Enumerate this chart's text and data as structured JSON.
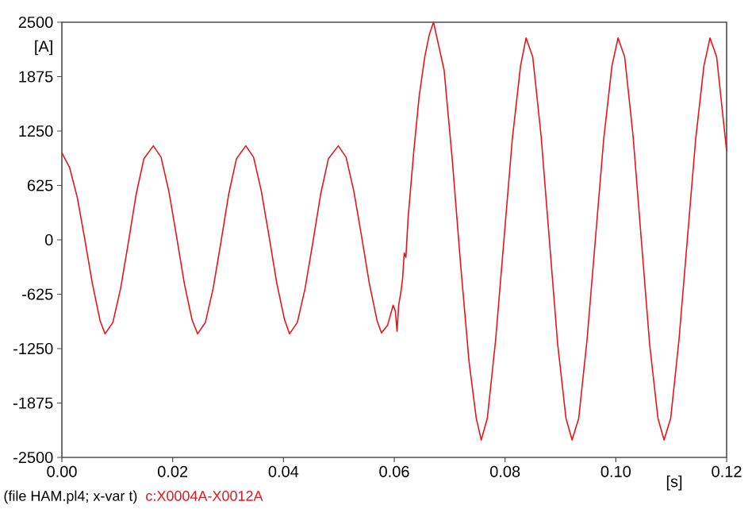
{
  "chart_data": {
    "type": "line",
    "xlabel": "[s]",
    "ylabel": "[A]",
    "annotations": [
      "(file HAM.pl4; x-var t)"
    ],
    "legend": "bottom left",
    "line_style": "solid",
    "xlim": [
      0,
      0.12
    ],
    "ylim": [
      -2500,
      2500
    ],
    "xticks": [
      {
        "value": 0,
        "label": "0.00"
      },
      {
        "value": 0.02,
        "label": "0.02"
      },
      {
        "value": 0.04,
        "label": "0.04"
      },
      {
        "value": 0.06,
        "label": "0.06"
      },
      {
        "value": 0.08,
        "label": "0.08"
      },
      {
        "value": 0.1,
        "label": "0.10"
      },
      {
        "value": 0.12,
        "label": "0.12"
      }
    ],
    "yticks": [
      -2500,
      -1875,
      -1250,
      -625,
      0,
      625,
      1250,
      1875,
      2500
    ],
    "x": [
      0,
      0.0014,
      0.0028,
      0.0041,
      0.0055,
      0.0069,
      0.0078,
      0.0092,
      0.0106,
      0.012,
      0.0134,
      0.0148,
      0.0165,
      0.0179,
      0.0193,
      0.0207,
      0.0221,
      0.0235,
      0.0245,
      0.0259,
      0.0273,
      0.0287,
      0.0301,
      0.0315,
      0.0332,
      0.0346,
      0.036,
      0.0374,
      0.0388,
      0.0402,
      0.0411,
      0.0425,
      0.0439,
      0.0453,
      0.0467,
      0.0481,
      0.0499,
      0.0513,
      0.0527,
      0.0541,
      0.0555,
      0.0569,
      0.0577,
      0.0588,
      0.0598,
      0.0602,
      0.0605,
      0.0608,
      0.0612,
      0.0615,
      0.0618,
      0.0621,
      0.0625,
      0.0635,
      0.0645,
      0.0655,
      0.0663,
      0.0668,
      0.0671,
      0.0675,
      0.069,
      0.0705,
      0.072,
      0.0735,
      0.0748,
      0.0757,
      0.0768,
      0.0783,
      0.0798,
      0.0813,
      0.0828,
      0.0838,
      0.085,
      0.0865,
      0.088,
      0.0895,
      0.091,
      0.0921,
      0.0933,
      0.0948,
      0.0963,
      0.0978,
      0.0993,
      0.1004,
      0.1016,
      0.1031,
      0.1046,
      0.1061,
      0.1076,
      0.1087,
      0.1099,
      0.1114,
      0.1129,
      0.1144,
      0.1159,
      0.117,
      0.1182,
      0.12
    ],
    "series": [
      {
        "name": "c:X0004A-X0012A",
        "color": "#e8141c",
        "values": [
          1000,
          830,
          480,
          20,
          -500,
          -930,
          -1080,
          -950,
          -560,
          -30,
          520,
          930,
          1080,
          950,
          560,
          40,
          -500,
          -920,
          -1080,
          -950,
          -560,
          -30,
          520,
          930,
          1080,
          950,
          560,
          40,
          -500,
          -920,
          -1080,
          -950,
          -560,
          -30,
          520,
          930,
          1080,
          950,
          560,
          40,
          -500,
          -930,
          -1070,
          -980,
          -750,
          -820,
          -1050,
          -750,
          -600,
          -450,
          -150,
          -200,
          250,
          1000,
          1650,
          2100,
          2350,
          2450,
          2500,
          2380,
          1950,
          900,
          -300,
          -1400,
          -2050,
          -2300,
          -2050,
          -1150,
          0,
          1150,
          2000,
          2320,
          2100,
          1200,
          0,
          -1200,
          -2050,
          -2300,
          -2050,
          -1150,
          0,
          1150,
          2000,
          2320,
          2100,
          1200,
          0,
          -1200,
          -2050,
          -2300,
          -2050,
          -1150,
          0,
          1150,
          2000,
          2320,
          2100,
          1020
        ]
      }
    ]
  }
}
